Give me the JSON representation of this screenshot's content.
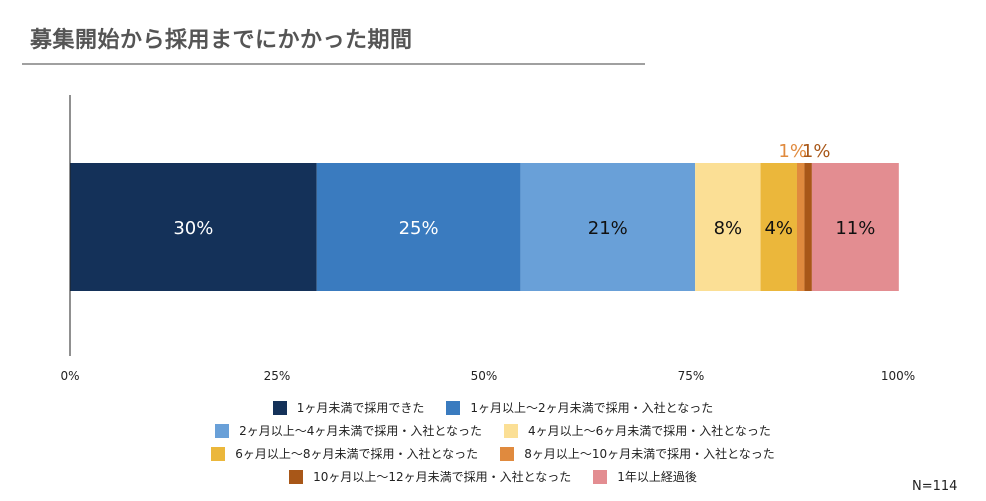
{
  "chart_data": {
    "type": "bar",
    "orientation": "horizontal-stacked-100",
    "title": "募集開始から採用までにかかった期間",
    "categories": [
      ""
    ],
    "series": [
      {
        "name": "1ヶ月未満で採用できた",
        "values": [
          29.8
        ],
        "label": "30%",
        "color": "#143159",
        "label_color": "#ffffff"
      },
      {
        "name": "1ヶ月以上～2ヶ月未満で採用・入社となった",
        "values": [
          24.6
        ],
        "label": "25%",
        "color": "#3a7bbf",
        "label_color": "#ffffff"
      },
      {
        "name": "2ヶ月以上～4ヶ月未満で採用・入社となった",
        "values": [
          21.1
        ],
        "label": "21%",
        "color": "#69a0d8",
        "label_color": "#111111"
      },
      {
        "name": "4ヶ月以上～6ヶ月未満で採用・入社となった",
        "values": [
          7.9
        ],
        "label": "8%",
        "color": "#fbdf95",
        "label_color": "#111111"
      },
      {
        "name": "6ヶ月以上～8ヶ月未満で採用・入社となった",
        "values": [
          4.4
        ],
        "label": "4%",
        "color": "#ebb73b",
        "label_color": "#111111"
      },
      {
        "name": "8ヶ月以上～10ヶ月未満で採用・入社となった",
        "values": [
          0.9
        ],
        "label": "1%",
        "color": "#e08a3e",
        "label_color": "#e08a3e",
        "label_outside": true
      },
      {
        "name": "10ヶ月以上～12ヶ月未満で採用・入社となった",
        "values": [
          0.9
        ],
        "label": "1%",
        "color": "#a85718",
        "label_color": "#a85718",
        "label_outside": true
      },
      {
        "name": "1年以上経過後",
        "values": [
          10.5
        ],
        "label": "11%",
        "color": "#e38d91",
        "label_color": "#111111"
      }
    ],
    "xlim": [
      0,
      100
    ],
    "xticks": [
      "0%",
      "25%",
      "50%",
      "75%",
      "100%"
    ],
    "grid": false,
    "legend_position": "bottom",
    "note": "N=114"
  }
}
